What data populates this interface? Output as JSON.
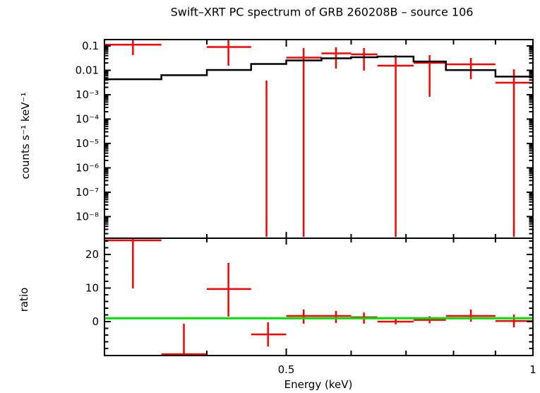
{
  "title": "Swift–XRT PC spectrum of GRB 260208B – source 106",
  "colors": {
    "background": "#ffffff",
    "axis": "#000000",
    "data": "#ff0000",
    "model": "#000000",
    "ratio_line": "#00e000"
  },
  "x_axis": {
    "label": "Energy (keV)",
    "ticks": [
      0.4,
      0.5,
      0.6,
      0.7,
      0.8,
      0.9,
      1.0
    ],
    "tick_labels": [
      {
        "label": "0.5",
        "value": 0.5
      },
      {
        "label": "1",
        "value": 1.0
      }
    ]
  },
  "chart_data": [
    {
      "type": "line",
      "panel": "spectrum",
      "xscale": "log",
      "yscale": "log",
      "xlim": [
        0.3,
        1.0
      ],
      "ylim": [
        1.3e-09,
        0.182
      ],
      "ylabel": "counts s⁻¹ keV⁻¹",
      "ytick_majors": [
        {
          "label": "0.1",
          "value": 0.1
        },
        {
          "label": "0.01",
          "value": 0.01
        },
        {
          "label": "10⁻³",
          "value": 0.001
        },
        {
          "label": "10⁻⁴",
          "value": 0.0001
        },
        {
          "label": "10⁻⁵",
          "value": 1e-05
        },
        {
          "label": "10⁻⁶",
          "value": 1e-06
        },
        {
          "label": "10⁻⁷",
          "value": 1e-07
        },
        {
          "label": "10⁻⁸",
          "value": 1e-08
        }
      ],
      "model_steps": [
        {
          "e_lo": 0.3,
          "e_hi": 0.352,
          "rate": 0.0043
        },
        {
          "e_lo": 0.352,
          "e_hi": 0.4,
          "rate": 0.0063
        },
        {
          "e_lo": 0.4,
          "e_hi": 0.453,
          "rate": 0.0103
        },
        {
          "e_lo": 0.453,
          "e_hi": 0.5,
          "rate": 0.0182
        },
        {
          "e_lo": 0.5,
          "e_hi": 0.552,
          "rate": 0.0255
        },
        {
          "e_lo": 0.552,
          "e_hi": 0.6,
          "rate": 0.0311
        },
        {
          "e_lo": 0.6,
          "e_hi": 0.646,
          "rate": 0.0344
        },
        {
          "e_lo": 0.646,
          "e_hi": 0.715,
          "rate": 0.0367
        },
        {
          "e_lo": 0.715,
          "e_hi": 0.783,
          "rate": 0.023
        },
        {
          "e_lo": 0.783,
          "e_hi": 0.9,
          "rate": 0.0102
        },
        {
          "e_lo": 0.9,
          "e_hi": 1.0,
          "rate": 0.0055
        }
      ],
      "points": [
        {
          "e": 0.325,
          "e_lo": 0.3,
          "e_hi": 0.352,
          "rate": 0.112,
          "rate_hi": 0.3,
          "rate_lo": 0.042
        },
        {
          "e": 0.425,
          "e_lo": 0.4,
          "e_hi": 0.453,
          "rate": 0.09,
          "rate_hi": 0.3,
          "rate_lo": 0.0155
        },
        {
          "e": 0.473,
          "e_lo": null,
          "e_hi": null,
          "rate": 0.0038,
          "rate_hi": 0.0038,
          "rate_lo": 1e-09
        },
        {
          "e": 0.525,
          "e_lo": 0.5,
          "e_hi": 0.552,
          "rate": 0.0333,
          "rate_hi": 0.082,
          "rate_lo": 1e-09
        },
        {
          "e": 0.575,
          "e_lo": 0.552,
          "e_hi": 0.6,
          "rate": 0.0497,
          "rate_hi": 0.0875,
          "rate_lo": 0.0118
        },
        {
          "e": 0.622,
          "e_lo": 0.6,
          "e_hi": 0.646,
          "rate": 0.045,
          "rate_hi": 0.082,
          "rate_lo": 0.0097
        },
        {
          "e": 0.68,
          "e_lo": 0.646,
          "e_hi": 0.715,
          "rate": 0.0155,
          "rate_hi": 0.042,
          "rate_lo": 1e-09
        },
        {
          "e": 0.748,
          "e_lo": 0.715,
          "e_hi": 0.783,
          "rate": 0.0202,
          "rate_hi": 0.042,
          "rate_lo": 0.00082
        },
        {
          "e": 0.84,
          "e_lo": 0.783,
          "e_hi": 0.9,
          "rate": 0.0176,
          "rate_hi": 0.0321,
          "rate_lo": 0.0043
        },
        {
          "e": 0.948,
          "e_lo": 0.9,
          "e_hi": 1.0,
          "rate": 0.0031,
          "rate_hi": 0.011,
          "rate_lo": 1e-09
        }
      ]
    },
    {
      "type": "scatter",
      "panel": "ratio",
      "xscale": "log",
      "yscale": "linear",
      "xlim": [
        0.3,
        1.0
      ],
      "ylim": [
        -10.1,
        24.84
      ],
      "ylabel": "ratio",
      "ytick_majors": [
        {
          "label": "0",
          "value": 0
        },
        {
          "label": "10",
          "value": 10
        },
        {
          "label": "20",
          "value": 20
        }
      ],
      "ytick_minor_step": 2,
      "reference_line": {
        "value": 1
      },
      "points": [
        {
          "e": 0.325,
          "e_lo": 0.3,
          "e_hi": 0.352,
          "ratio": 24.2,
          "ratio_hi": 30,
          "ratio_lo": 9.9
        },
        {
          "e": 0.375,
          "e_lo": 0.352,
          "e_hi": 0.4,
          "ratio": -9.7,
          "ratio_hi": -0.6,
          "ratio_lo": -13
        },
        {
          "e": 0.425,
          "e_lo": 0.4,
          "e_hi": 0.453,
          "ratio": 9.7,
          "ratio_hi": 17.5,
          "ratio_lo": 1.5
        },
        {
          "e": 0.475,
          "e_lo": 0.453,
          "e_hi": 0.5,
          "ratio": -3.8,
          "ratio_hi": -0.2,
          "ratio_lo": -7.4
        },
        {
          "e": 0.525,
          "e_lo": 0.5,
          "e_hi": 0.552,
          "ratio": 1.7,
          "ratio_hi": 3.6,
          "ratio_lo": -0.6
        },
        {
          "e": 0.575,
          "e_lo": 0.552,
          "e_hi": 0.6,
          "ratio": 1.7,
          "ratio_hi": 3.2,
          "ratio_lo": -0.4
        },
        {
          "e": 0.622,
          "e_lo": 0.6,
          "e_hi": 0.646,
          "ratio": 1.3,
          "ratio_hi": 2.7,
          "ratio_lo": -0.6
        },
        {
          "e": 0.68,
          "e_lo": 0.646,
          "e_hi": 0.715,
          "ratio": 0.0,
          "ratio_hi": 1.3,
          "ratio_lo": -0.8
        },
        {
          "e": 0.748,
          "e_lo": 0.715,
          "e_hi": 0.783,
          "ratio": 0.5,
          "ratio_hi": 1.6,
          "ratio_lo": -0.5
        },
        {
          "e": 0.84,
          "e_lo": 0.783,
          "e_hi": 0.9,
          "ratio": 1.7,
          "ratio_hi": 3.6,
          "ratio_lo": 0.0
        },
        {
          "e": 0.948,
          "e_lo": 0.9,
          "e_hi": 1.0,
          "ratio": 0.2,
          "ratio_hi": 2.1,
          "ratio_lo": -1.7
        }
      ]
    }
  ]
}
